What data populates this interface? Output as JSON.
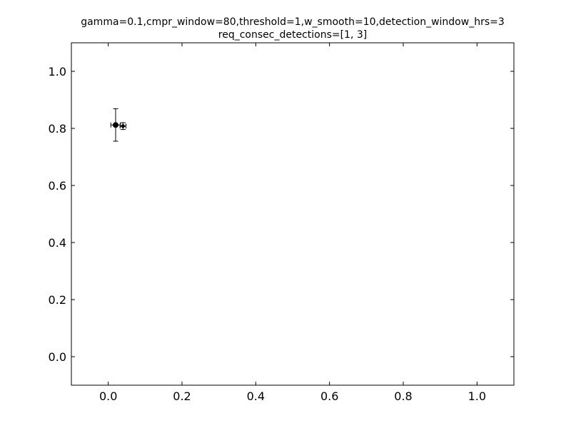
{
  "chart_data": {
    "type": "scatter",
    "title": "gamma=0.1,cmpr_window=80,threshold=1,w_smooth=10,detection_window_hrs=3",
    "subtitle": "req_consec_detections=[1, 3]",
    "xlabel": "",
    "ylabel": "",
    "xlim": [
      -0.1,
      1.1
    ],
    "ylim": [
      -0.1,
      1.1
    ],
    "grid": false,
    "x_ticks": [
      0.0,
      0.2,
      0.4,
      0.6,
      0.8,
      1.0
    ],
    "y_ticks": [
      0.0,
      0.2,
      0.4,
      0.6,
      0.8,
      1.0
    ],
    "x_tick_labels": [
      "0.0",
      "0.2",
      "0.4",
      "0.6",
      "0.8",
      "1.0"
    ],
    "y_tick_labels": [
      "0.0",
      "0.2",
      "0.4",
      "0.6",
      "0.8",
      "1.0"
    ],
    "series": [
      {
        "points": [
          {
            "x": 0.02,
            "y": 0.812,
            "xerr": 0.013,
            "yerr": 0.057,
            "marker": "circle"
          },
          {
            "x": 0.04,
            "y": 0.808,
            "xerr": 0.008,
            "yerr": 0.012,
            "marker": "diamond"
          }
        ]
      }
    ],
    "colors": {
      "marker": "#000000",
      "axes": "#000000",
      "background": "#ffffff"
    }
  }
}
